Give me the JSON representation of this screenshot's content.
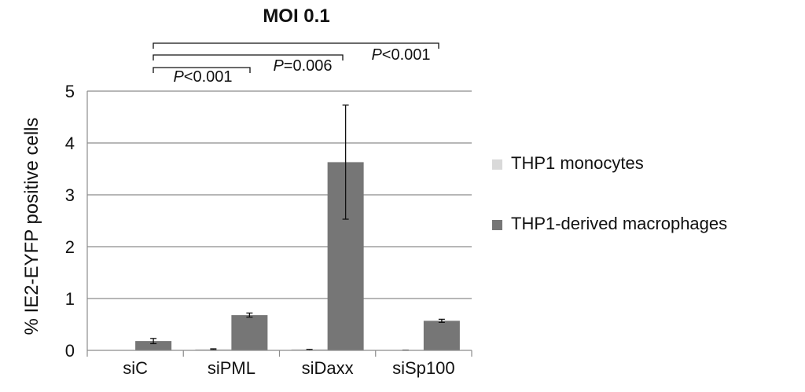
{
  "chart_data": {
    "type": "bar",
    "title": "MOI 0.1",
    "ylabel": "% IE2-EYFP positive cells",
    "xlabel": "",
    "categories": [
      "siC",
      "siPML",
      "siDaxx",
      "siSp100"
    ],
    "ylim": [
      0,
      5
    ],
    "yticks": [
      "0",
      "1",
      "2",
      "3",
      "4",
      "5"
    ],
    "grid": true,
    "legend_position": "right",
    "series": [
      {
        "name": "THP1 monocytes",
        "color": "#d9d9d9",
        "values": [
          0.0,
          0.02,
          0.01,
          0.0
        ],
        "errors": [
          0.0,
          0.01,
          0.01,
          0.005
        ]
      },
      {
        "name": "THP1-derived macrophages",
        "color": "#767676",
        "values": [
          0.18,
          0.68,
          3.63,
          0.57
        ],
        "errors": [
          0.05,
          0.04,
          1.1,
          0.03
        ]
      }
    ],
    "annotations": [
      {
        "from": "siC",
        "to": "siPML",
        "prefix": "P",
        "text": "<0.001"
      },
      {
        "from": "siC",
        "to": "siDaxx",
        "prefix": "P",
        "text": "=0.006"
      },
      {
        "from": "siC",
        "to": "siSp100",
        "prefix": "P",
        "text": "<0.001"
      }
    ]
  }
}
